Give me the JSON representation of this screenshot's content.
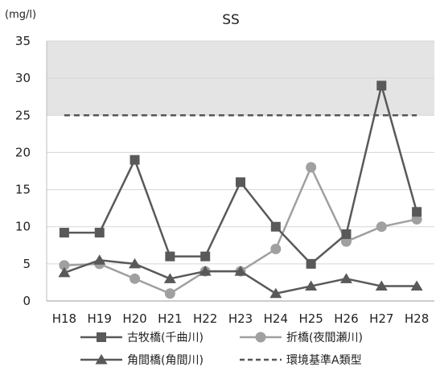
{
  "chart_data": {
    "type": "line",
    "title": "SS",
    "unit_label": "(mg/l)",
    "categories": [
      "H18",
      "H19",
      "H20",
      "H21",
      "H22",
      "H23",
      "H24",
      "H25",
      "H26",
      "H27",
      "H28"
    ],
    "ylim": [
      0,
      35
    ],
    "yticks": [
      0,
      5,
      10,
      15,
      20,
      25,
      30,
      35
    ],
    "grid": true,
    "series": [
      {
        "name": "古牧橋(千曲川)",
        "marker": "square",
        "color": "#595959",
        "values": [
          9.2,
          9.2,
          19,
          6,
          6,
          16,
          10,
          5,
          9,
          29,
          12
        ]
      },
      {
        "name": "折橋(夜間瀬川)",
        "marker": "circle",
        "color": "#a0a0a0",
        "values": [
          4.8,
          5,
          3,
          1,
          4,
          4,
          7,
          18,
          8,
          10,
          11
        ]
      },
      {
        "name": "角間橋(角間川)",
        "marker": "triangle",
        "color": "#595959",
        "values": [
          3.8,
          5.5,
          5,
          3,
          4,
          4,
          1,
          2,
          3,
          2,
          2
        ]
      }
    ],
    "standard": {
      "name": "環境基準A類型",
      "value": 25,
      "color": "#555555",
      "band_color": "#e4e4e4"
    },
    "legend": "bottom"
  }
}
